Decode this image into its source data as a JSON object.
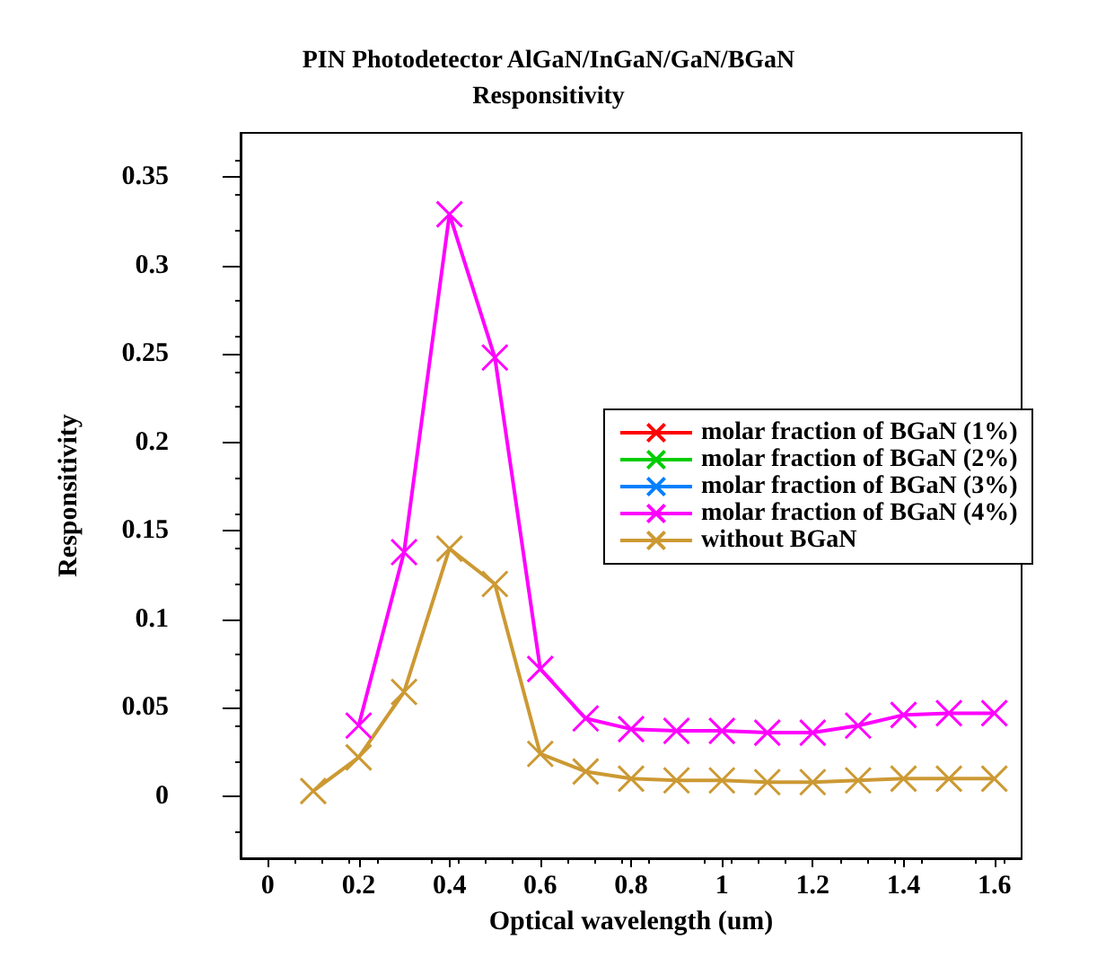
{
  "chart_data": {
    "type": "line",
    "title": "PIN Photodetector AlGaN/InGaN/GaN/BGaN",
    "subtitle": "Responsitivity",
    "xlabel": "Optical wavelength (um)",
    "ylabel": "Responsitivity",
    "x": [
      0.1,
      0.2,
      0.3,
      0.4,
      0.5,
      0.6,
      0.7,
      0.8,
      0.9,
      1.0,
      1.1,
      1.2,
      1.3,
      1.4,
      1.5,
      1.6
    ],
    "series": [
      {
        "name": "molar fraction of BGaN (1%)",
        "color": "#ff0000",
        "values": [
          null,
          null,
          null,
          null,
          null,
          null,
          null,
          null,
          null,
          null,
          null,
          null,
          null,
          null,
          null,
          null
        ]
      },
      {
        "name": "molar fraction of BGaN (2%)",
        "color": "#00cc00",
        "values": [
          null,
          null,
          null,
          null,
          null,
          null,
          null,
          null,
          null,
          null,
          null,
          null,
          null,
          null,
          null,
          null
        ]
      },
      {
        "name": "molar fraction of BGaN (3%)",
        "color": "#0080ff",
        "values": [
          null,
          null,
          null,
          null,
          null,
          null,
          null,
          null,
          null,
          null,
          null,
          null,
          null,
          null,
          null,
          null
        ]
      },
      {
        "name": "molar fraction of BGaN (4%)",
        "color": "#ff00ff",
        "values": [
          null,
          0.04,
          0.138,
          0.329,
          0.248,
          0.072,
          0.044,
          0.038,
          0.037,
          0.037,
          0.036,
          0.036,
          0.04,
          0.046,
          0.047,
          0.047
        ]
      },
      {
        "name": "without BGaN",
        "color": "#cc9933",
        "values": [
          0.003,
          0.022,
          0.059,
          0.14,
          0.12,
          0.024,
          0.014,
          0.01,
          0.009,
          0.009,
          0.008,
          0.008,
          0.009,
          0.01,
          0.01,
          0.01
        ]
      }
    ],
    "xlim": [
      -0.06,
      1.66
    ],
    "ylim": [
      -0.035,
      0.375
    ],
    "xticks": [
      0,
      0.2,
      0.4,
      0.6,
      0.8,
      1,
      1.2,
      1.4,
      1.6
    ],
    "yticks": [
      0,
      0.05,
      0.1,
      0.15,
      0.2,
      0.25,
      0.3,
      0.35
    ],
    "grid": false,
    "legend": "right",
    "marker": "cross",
    "line_style": "solid"
  }
}
